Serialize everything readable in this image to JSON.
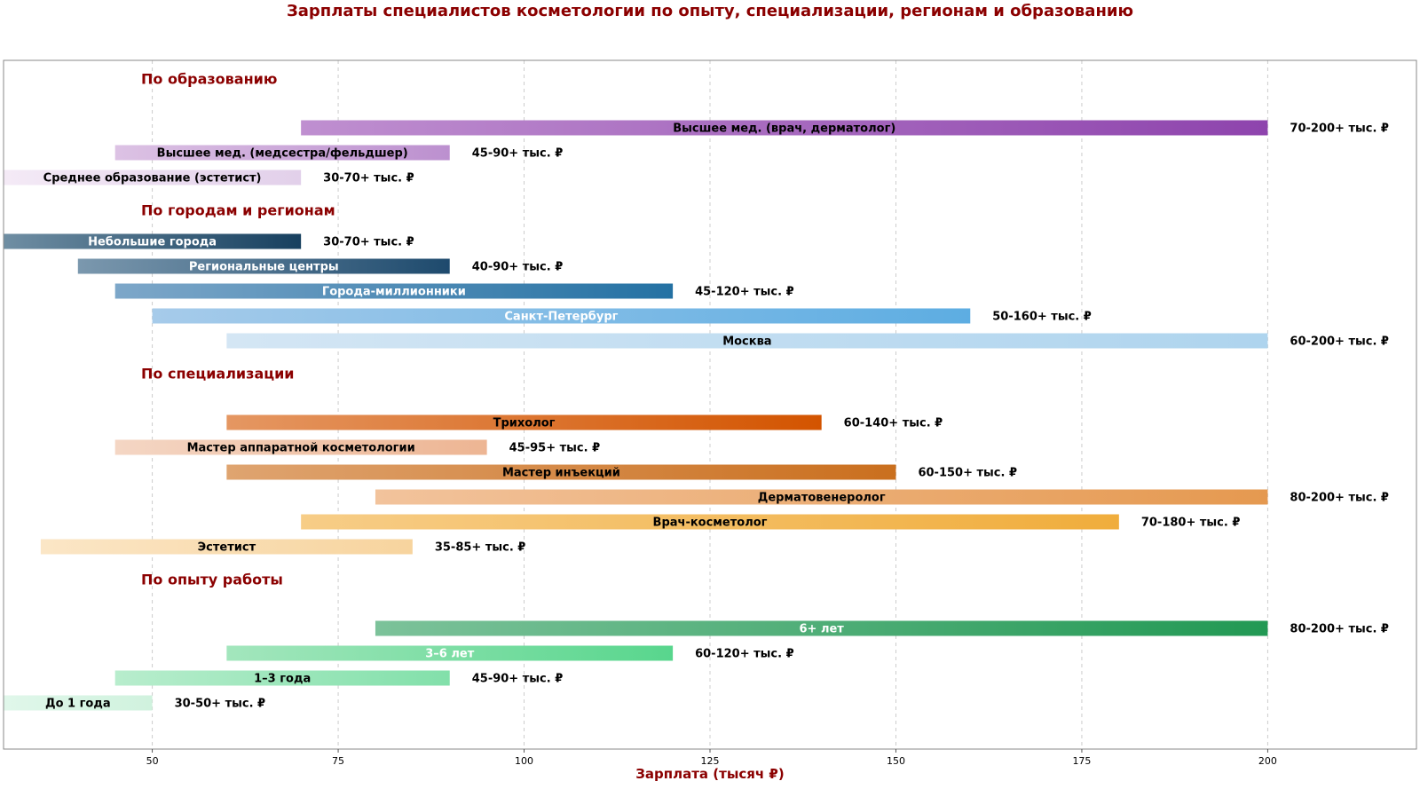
{
  "chart_data": {
    "type": "bar",
    "orientation": "horizontal-range",
    "title": "Зарплаты специалистов косметологии по опыту, специализации, регионам и образованию",
    "xlabel": "Зарплата (тысяч ₽)",
    "xlim": [
      30,
      220
    ],
    "xticks": [
      50,
      75,
      100,
      125,
      150,
      175,
      200
    ],
    "grid": true,
    "grid_axis": "x",
    "groups": [
      {
        "heading": "По образованию",
        "bars": [
          {
            "label": "Высшее мед. (врач, дерматолог)",
            "start": 70,
            "end": 200,
            "value_label": "70-200+ тыс. ₽",
            "colors": [
              "#bf8fd0",
              "#8e44ad"
            ],
            "text_color": "#000000"
          },
          {
            "label": "Высшее мед. (медсестра/фельдшер)",
            "start": 45,
            "end": 90,
            "value_label": "45-90+ тыс. ₽",
            "colors": [
              "#dcc2e4",
              "#bc90cf"
            ],
            "text_color": "#000000"
          },
          {
            "label": "Среднее образование (эстетист)",
            "start": 30,
            "end": 70,
            "value_label": "30-70+ тыс. ₽",
            "colors": [
              "#f4eaf6",
              "#e2d0ea"
            ],
            "text_color": "#000000"
          }
        ]
      },
      {
        "heading": "По городам и регионам",
        "bars": [
          {
            "label": "Небольшие города",
            "start": 30,
            "end": 70,
            "value_label": "30-70+ тыс. ₽",
            "colors": [
              "#6f8ea3",
              "#17405f"
            ],
            "text_color": "#ffffff"
          },
          {
            "label": "Региональные центры",
            "start": 40,
            "end": 90,
            "value_label": "40-90+ тыс. ₽",
            "colors": [
              "#7b98ae",
              "#1e4a6d"
            ],
            "text_color": "#ffffff"
          },
          {
            "label": "Города-миллионники",
            "start": 45,
            "end": 120,
            "value_label": "45-120+ тыс. ₽",
            "colors": [
              "#7da7c9",
              "#2471a3"
            ],
            "text_color": "#ffffff"
          },
          {
            "label": "Санкт-Петербург",
            "start": 50,
            "end": 160,
            "value_label": "50-160+ тыс. ₽",
            "colors": [
              "#a6cbea",
              "#5dade2"
            ],
            "text_color": "#ffffff"
          },
          {
            "label": "Москва",
            "start": 60,
            "end": 200,
            "value_label": "60-200+ тыс. ₽",
            "colors": [
              "#d4e6f4",
              "#aed4ee"
            ],
            "text_color": "#000000"
          }
        ]
      },
      {
        "heading": "По специализации",
        "bars": [
          {
            "label": "Трихолог",
            "start": 60,
            "end": 140,
            "value_label": "60-140+ тыс. ₽",
            "colors": [
              "#e59762",
              "#d35400"
            ],
            "text_color": "#000000"
          },
          {
            "label": "Мастер аппаратной косметологии",
            "start": 45,
            "end": 95,
            "value_label": "45-95+ тыс. ₽",
            "colors": [
              "#f4d6c4",
              "#edb593"
            ],
            "text_color": "#000000"
          },
          {
            "label": "Мастер инъекций",
            "start": 60,
            "end": 150,
            "value_label": "60-150+ тыс. ₽",
            "colors": [
              "#dfa470",
              "#ca6f1e"
            ],
            "text_color": "#000000"
          },
          {
            "label": "Дерматовенеролог",
            "start": 80,
            "end": 200,
            "value_label": "80-200+ тыс. ₽",
            "colors": [
              "#f2c39c",
              "#e59950"
            ],
            "text_color": "#000000"
          },
          {
            "label": "Врач-косметолог",
            "start": 70,
            "end": 180,
            "value_label": "70-180+ тыс. ₽",
            "colors": [
              "#f7cd87",
              "#f0ad3c"
            ],
            "text_color": "#000000"
          },
          {
            "label": "Эстетист",
            "start": 35,
            "end": 85,
            "value_label": "35-85+ тыс. ₽",
            "colors": [
              "#fbe6c6",
              "#f7d49e"
            ],
            "text_color": "#000000"
          }
        ]
      },
      {
        "heading": "По опыту работы",
        "bars": [
          {
            "label": "6+ лет",
            "start": 80,
            "end": 200,
            "value_label": "80-200+ тыс. ₽",
            "colors": [
              "#7cc29a",
              "#229954"
            ],
            "text_color": "#ffffff"
          },
          {
            "label": "3–6 лет",
            "start": 60,
            "end": 120,
            "value_label": "60-120+ тыс. ₽",
            "colors": [
              "#a3e6bd",
              "#58d68d"
            ],
            "text_color": "#ffffff"
          },
          {
            "label": "1–3 года",
            "start": 45,
            "end": 90,
            "value_label": "45-90+ тыс. ₽",
            "colors": [
              "#b8edcd",
              "#82e0aa"
            ],
            "text_color": "#000000"
          },
          {
            "label": "До 1 года",
            "start": 30,
            "end": 50,
            "value_label": "30-50+ тыс. ₽",
            "colors": [
              "#e0f7ea",
              "#d0f2de"
            ],
            "text_color": "#000000"
          }
        ]
      }
    ]
  },
  "colors": {
    "title": "#8b0000",
    "heading": "#8b0000",
    "axis_label": "#8b0000",
    "frame": "#888888",
    "grid": "#cccccc"
  }
}
